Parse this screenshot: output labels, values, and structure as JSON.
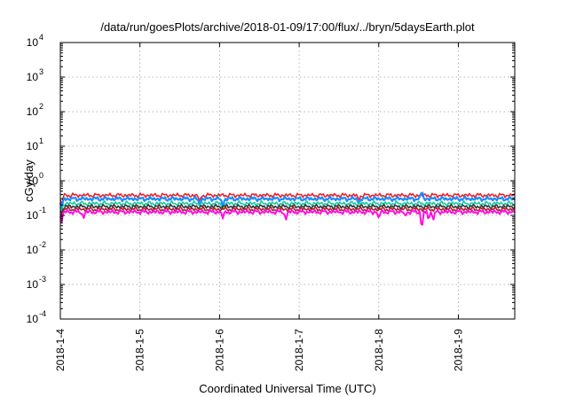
{
  "chart_data": {
    "type": "line",
    "title": "/data/run/goesPlots/archive/2018-01-09/17:00/flux/../bryn/5daysEarth.plot",
    "xlabel": "Coordinated Universal Time (UTC)",
    "ylabel": "cGy/day",
    "y_scale": "log",
    "ylim": [
      0.0001,
      10000
    ],
    "y_ticks": [
      {
        "base": "10",
        "exp": "-4",
        "value": 0.0001
      },
      {
        "base": "10",
        "exp": "-3",
        "value": 0.001
      },
      {
        "base": "10",
        "exp": "-2",
        "value": 0.01
      },
      {
        "base": "10",
        "exp": "-1",
        "value": 0.1
      },
      {
        "base": "10",
        "exp": "0",
        "value": 1
      },
      {
        "base": "10",
        "exp": "1",
        "value": 10
      },
      {
        "base": "10",
        "exp": "2",
        "value": 100
      },
      {
        "base": "10",
        "exp": "3",
        "value": 1000
      },
      {
        "base": "10",
        "exp": "4",
        "value": 10000
      }
    ],
    "xlim": [
      "2018-01-04T00:00",
      "2018-01-09T17:00"
    ],
    "x_ticks": [
      "2018-1-4",
      "2018-1-5",
      "2018-1-6",
      "2018-1-7",
      "2018-1-8",
      "2018-1-9"
    ],
    "grid": true,
    "series": [
      {
        "color": "#e8262b",
        "baseline": 0.38,
        "dips": [
          {
            "x": "2018-01-04T00:20",
            "y": 0.18
          },
          {
            "x": "2018-01-05T18:00",
            "y": 0.24
          },
          {
            "x": "2018-01-07T18:00",
            "y": 0.26
          }
        ]
      },
      {
        "color": "#1f8bff",
        "baseline": 0.3,
        "dips": [
          {
            "x": "2018-01-04T00:20",
            "y": 0.13
          },
          {
            "x": "2018-01-05T18:00",
            "y": 0.19
          },
          {
            "x": "2018-01-06T01:00",
            "y": 0.17
          },
          {
            "x": "2018-01-07T18:00",
            "y": 0.21
          },
          {
            "x": "2018-01-08T13:00",
            "y": 0.55
          }
        ]
      },
      {
        "color": "#19c9a3",
        "baseline": 0.22,
        "dips": [
          {
            "x": "2018-01-04T00:20",
            "y": 0.11
          },
          {
            "x": "2018-01-06T01:00",
            "y": 0.15
          }
        ]
      },
      {
        "color": "#2a3a3a",
        "baseline": 0.18,
        "dips": [
          {
            "x": "2018-01-04T00:20",
            "y": 0.1
          }
        ]
      },
      {
        "color": "#b0202a",
        "baseline": 0.15,
        "dips": [
          {
            "x": "2018-01-04T00:20",
            "y": 0.09
          }
        ]
      },
      {
        "color": "#ff10e0",
        "baseline": 0.125,
        "dips": [
          {
            "x": "2018-01-04T00:20",
            "y": 0.06
          },
          {
            "x": "2018-01-04T07:00",
            "y": 0.08
          },
          {
            "x": "2018-01-06T01:00",
            "y": 0.08
          },
          {
            "x": "2018-01-06T20:00",
            "y": 0.07
          },
          {
            "x": "2018-01-08T00:00",
            "y": 0.08
          },
          {
            "x": "2018-01-08T08:00",
            "y": 0.09
          },
          {
            "x": "2018-01-08T13:00",
            "y": 0.035
          },
          {
            "x": "2018-01-08T15:00",
            "y": 0.07
          },
          {
            "x": "2018-01-08T16:30",
            "y": 0.075
          }
        ]
      }
    ]
  }
}
